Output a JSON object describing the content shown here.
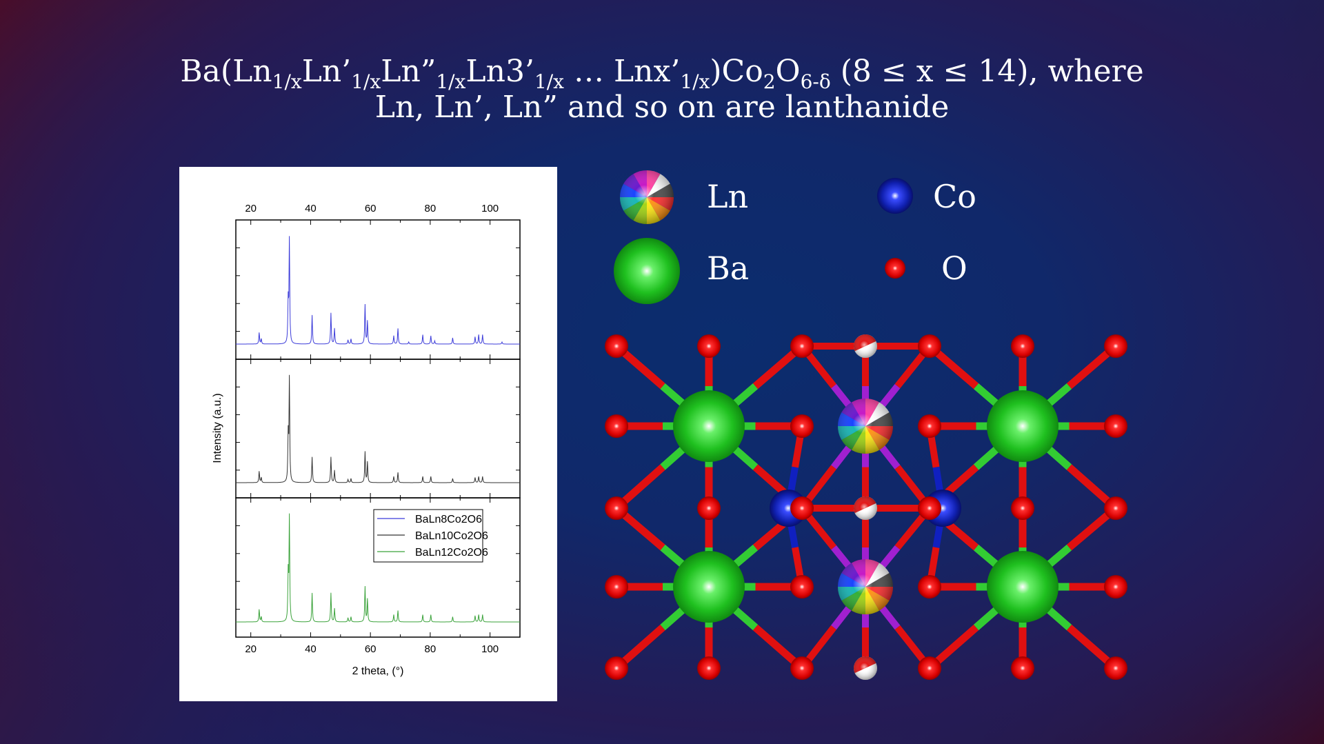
{
  "slide": {
    "title_line1": "Ba(Ln",
    "title_parts": {
      "p1": "Ba(Ln",
      "s1": "1/x",
      "p2": "Ln’",
      "s2": "1/x",
      "p3": "Ln”",
      "s3": "1/x",
      "p4": "Ln3’",
      "s4": "1/x",
      "p5": " … Lnx’",
      "s5": "1/x",
      "p6": ")Co",
      "s6": "2",
      "p7": "O",
      "s7": "6-δ",
      "p8": " (8 ≤ x ≤ 14),  where"
    },
    "title_line2": "Ln, Ln’, Ln” and so on are lanthanide"
  },
  "atom_key": [
    {
      "label": "Ln",
      "color": "multicolor"
    },
    {
      "label": "Co",
      "color": "#0a1aa0"
    },
    {
      "label": "Ba",
      "color": "#22c422"
    },
    {
      "label": "O",
      "color": "#e00000"
    }
  ],
  "chart_data": {
    "type": "line",
    "xlabel": "2 theta, (°)",
    "ylabel": "Intensity (a.u.)",
    "xlim": [
      15,
      110
    ],
    "x_ticks": [
      20,
      40,
      60,
      80,
      100
    ],
    "grid": false,
    "legend_position": "top-right of bottom panel",
    "series": [
      {
        "name": "BaLn8Co2O6",
        "color": "#3b3bd9",
        "peaks": [
          [
            22.8,
            0.11
          ],
          [
            23.5,
            0.05
          ],
          [
            32.5,
            0.4
          ],
          [
            32.9,
            1.0
          ],
          [
            40.5,
            0.28
          ],
          [
            46.8,
            0.3
          ],
          [
            48.0,
            0.15
          ],
          [
            52.5,
            0.04
          ],
          [
            53.5,
            0.05
          ],
          [
            58.2,
            0.38
          ],
          [
            59.0,
            0.22
          ],
          [
            67.8,
            0.08
          ],
          [
            69.2,
            0.15
          ],
          [
            72.8,
            0.02
          ],
          [
            77.5,
            0.09
          ],
          [
            80.2,
            0.08
          ],
          [
            81.5,
            0.03
          ],
          [
            87.5,
            0.06
          ],
          [
            95.0,
            0.07
          ],
          [
            96.2,
            0.09
          ],
          [
            97.5,
            0.09
          ],
          [
            104.0,
            0.02
          ]
        ]
      },
      {
        "name": "BaLn10Co2O6",
        "color": "#333333",
        "peaks": [
          [
            22.8,
            0.11
          ],
          [
            23.5,
            0.05
          ],
          [
            32.5,
            0.45
          ],
          [
            32.9,
            1.0
          ],
          [
            40.5,
            0.25
          ],
          [
            46.8,
            0.25
          ],
          [
            48.0,
            0.12
          ],
          [
            52.5,
            0.03
          ],
          [
            53.5,
            0.04
          ],
          [
            58.2,
            0.3
          ],
          [
            59.0,
            0.2
          ],
          [
            67.8,
            0.06
          ],
          [
            69.2,
            0.1
          ],
          [
            77.5,
            0.06
          ],
          [
            80.2,
            0.06
          ],
          [
            87.5,
            0.04
          ],
          [
            95.0,
            0.05
          ],
          [
            96.2,
            0.06
          ],
          [
            97.5,
            0.06
          ]
        ]
      },
      {
        "name": "BaLn12Co2O6",
        "color": "#3aa23a",
        "peaks": [
          [
            22.8,
            0.12
          ],
          [
            23.5,
            0.05
          ],
          [
            32.5,
            0.45
          ],
          [
            32.9,
            1.0
          ],
          [
            40.5,
            0.28
          ],
          [
            46.8,
            0.28
          ],
          [
            48.0,
            0.13
          ],
          [
            52.5,
            0.04
          ],
          [
            53.5,
            0.05
          ],
          [
            58.2,
            0.34
          ],
          [
            59.0,
            0.22
          ],
          [
            67.8,
            0.07
          ],
          [
            69.2,
            0.11
          ],
          [
            77.5,
            0.07
          ],
          [
            80.2,
            0.07
          ],
          [
            87.5,
            0.05
          ],
          [
            95.0,
            0.06
          ],
          [
            96.2,
            0.07
          ],
          [
            97.5,
            0.07
          ]
        ]
      }
    ]
  }
}
